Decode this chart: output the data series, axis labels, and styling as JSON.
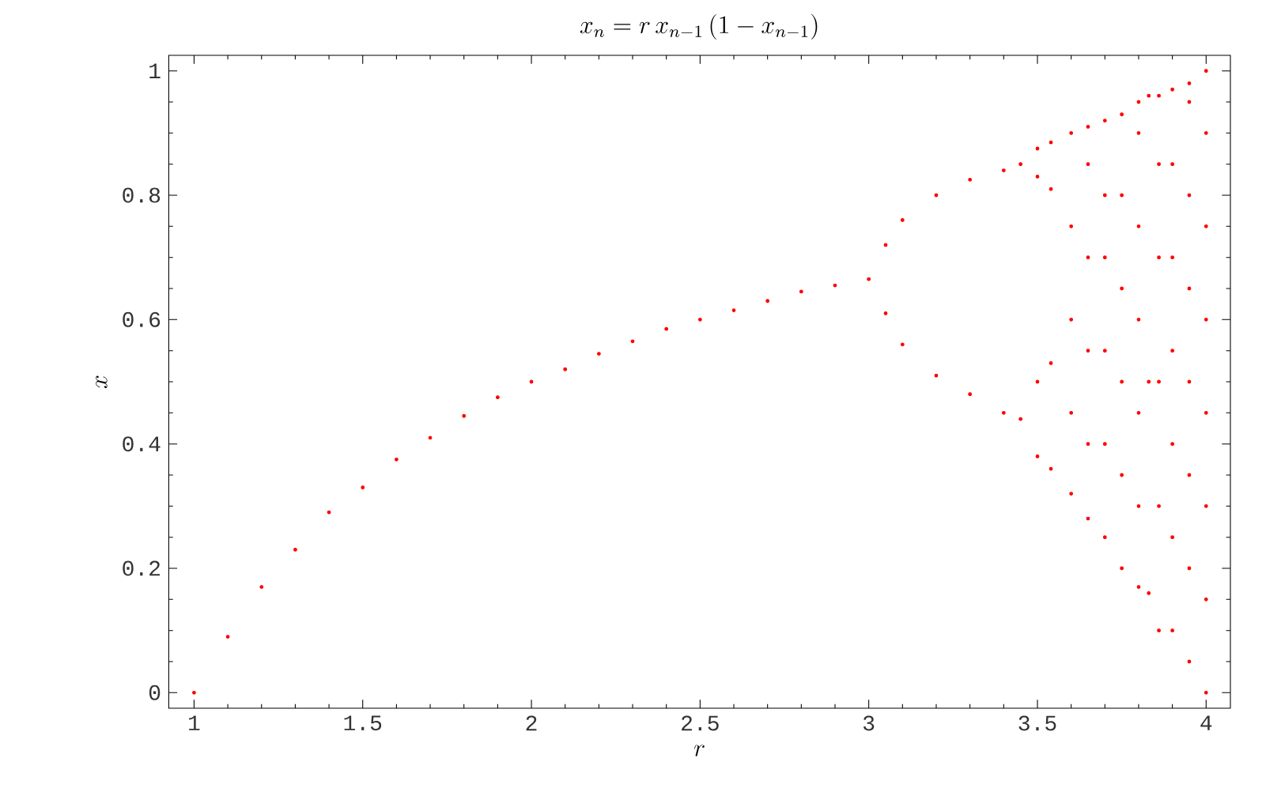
{
  "chart_data": {
    "type": "scatter",
    "title": "x_{n} = r\\,x_{n-1}\\,(1 - x_{n-1})",
    "xlabel": "r",
    "ylabel": "x",
    "xlim": [
      0.925,
      4.072
    ],
    "ylim": [
      -0.025,
      1.025
    ],
    "xticks": [
      1,
      1.5,
      2,
      2.5,
      3,
      3.5,
      4
    ],
    "yticks": [
      0,
      0.2,
      0.4,
      0.6,
      0.8,
      1
    ],
    "grid": false,
    "marker": "circle",
    "series": [
      {
        "color": "#ff0000",
        "x": [
          1.0,
          1.1,
          1.2,
          1.3,
          1.4,
          1.5,
          1.6,
          1.7,
          1.8,
          1.9,
          2.0,
          2.1,
          2.2,
          2.3,
          2.4,
          2.5,
          2.6,
          2.7,
          2.8,
          2.9,
          3.0,
          3.05,
          3.05,
          3.1,
          3.1,
          3.2,
          3.2,
          3.3,
          3.3,
          3.4,
          3.4,
          3.45,
          3.45,
          3.5,
          3.5,
          3.5,
          3.5,
          3.54,
          3.54,
          3.54,
          3.54,
          3.6,
          3.6,
          3.6,
          3.6,
          3.6,
          3.65,
          3.65,
          3.65,
          3.65,
          3.65,
          3.65,
          3.7,
          3.7,
          3.7,
          3.7,
          3.7,
          3.7,
          3.75,
          3.75,
          3.75,
          3.75,
          3.75,
          3.75,
          3.8,
          3.8,
          3.8,
          3.8,
          3.8,
          3.8,
          3.8,
          3.83,
          3.83,
          3.83,
          3.86,
          3.86,
          3.86,
          3.86,
          3.86,
          3.86,
          3.9,
          3.9,
          3.9,
          3.9,
          3.9,
          3.9,
          3.9,
          3.95,
          3.95,
          3.95,
          3.95,
          3.95,
          3.95,
          3.95,
          3.95,
          4.0,
          4.0,
          4.0,
          4.0,
          4.0,
          4.0,
          4.0,
          4.0
        ],
        "values": [
          0.0,
          0.09,
          0.17,
          0.23,
          0.29,
          0.33,
          0.375,
          0.41,
          0.445,
          0.475,
          0.5,
          0.52,
          0.545,
          0.565,
          0.585,
          0.6,
          0.615,
          0.63,
          0.645,
          0.655,
          0.665,
          0.72,
          0.61,
          0.76,
          0.56,
          0.8,
          0.51,
          0.825,
          0.48,
          0.84,
          0.45,
          0.85,
          0.44,
          0.875,
          0.83,
          0.5,
          0.38,
          0.885,
          0.81,
          0.53,
          0.36,
          0.32,
          0.45,
          0.6,
          0.75,
          0.9,
          0.28,
          0.4,
          0.55,
          0.7,
          0.85,
          0.91,
          0.25,
          0.4,
          0.55,
          0.7,
          0.8,
          0.92,
          0.2,
          0.35,
          0.5,
          0.65,
          0.8,
          0.93,
          0.17,
          0.3,
          0.45,
          0.6,
          0.75,
          0.9,
          0.95,
          0.16,
          0.5,
          0.96,
          0.1,
          0.3,
          0.5,
          0.7,
          0.85,
          0.96,
          0.1,
          0.25,
          0.4,
          0.55,
          0.7,
          0.85,
          0.97,
          0.05,
          0.2,
          0.35,
          0.5,
          0.65,
          0.8,
          0.95,
          0.98,
          0.0,
          0.15,
          0.3,
          0.45,
          0.6,
          0.75,
          0.9,
          1.0
        ]
      }
    ]
  }
}
